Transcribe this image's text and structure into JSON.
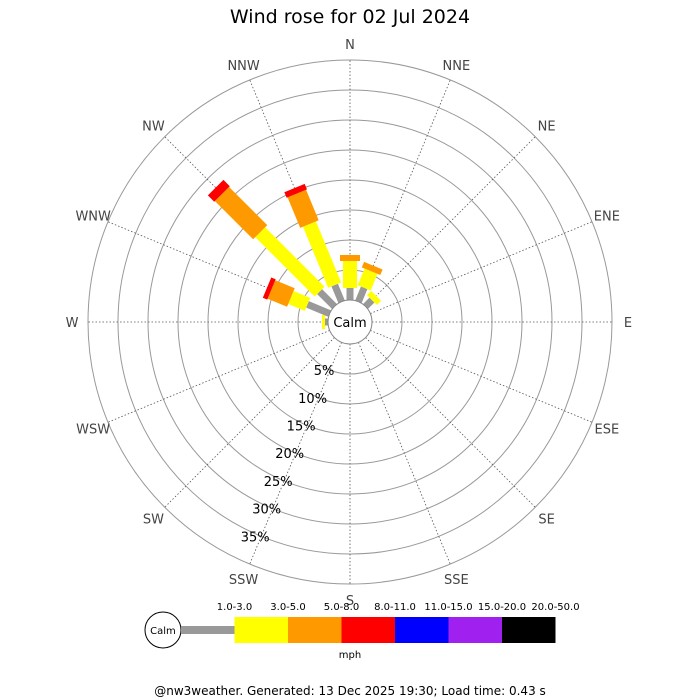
{
  "chart_data": {
    "type": "wind-rose",
    "title": "Wind rose for 02 Jul 2024",
    "directions": [
      "N",
      "NNE",
      "NE",
      "ENE",
      "E",
      "ESE",
      "SE",
      "SSE",
      "S",
      "SSW",
      "SW",
      "WSW",
      "W",
      "WNW",
      "NW",
      "NNW"
    ],
    "ring_labels": [
      "5%",
      "10%",
      "15%",
      "20%",
      "25%",
      "30%",
      "35%"
    ],
    "ring_max_percent": 40,
    "calm_label": "Calm",
    "unit": "mph",
    "speed_bins": [
      {
        "label": "1.0-3.0",
        "color": "#999999"
      },
      {
        "label": "3.0-5.0",
        "color": "#ffff00"
      },
      {
        "label": "5.0-8.0",
        "color": "#ff9900"
      },
      {
        "label": "8.0-11.0",
        "color": "#ff0000"
      },
      {
        "label": "11.0-15.0",
        "color": "#0000ff"
      },
      {
        "label": "15.0-20.0",
        "color": "#a020f0"
      },
      {
        "label": "20.0-50.0",
        "color": "#000000"
      }
    ],
    "series": [
      {
        "direction": "N",
        "values": [
          2.0,
          4.5,
          1.0,
          0,
          0,
          0,
          0
        ]
      },
      {
        "direction": "NNE",
        "values": [
          2.5,
          3.0,
          1.0,
          0,
          0,
          0,
          0
        ]
      },
      {
        "direction": "NE",
        "values": [
          1.5,
          1.0,
          0,
          0,
          0,
          0,
          0
        ]
      },
      {
        "direction": "W",
        "values": [
          0.5,
          0.5,
          0,
          0,
          0,
          0,
          0
        ]
      },
      {
        "direction": "WNW",
        "values": [
          4.0,
          3.0,
          3.5,
          0.8,
          0,
          0,
          0
        ]
      },
      {
        "direction": "NW",
        "values": [
          3.5,
          14.0,
          9.0,
          1.5,
          0,
          0,
          0
        ]
      },
      {
        "direction": "NNW",
        "values": [
          3.0,
          11.0,
          5.5,
          1.0,
          0,
          0,
          0
        ]
      }
    ]
  },
  "footer": "@nw3weather.  Generated: 13 Dec 2025 19:30; Load time: 0.43 s"
}
